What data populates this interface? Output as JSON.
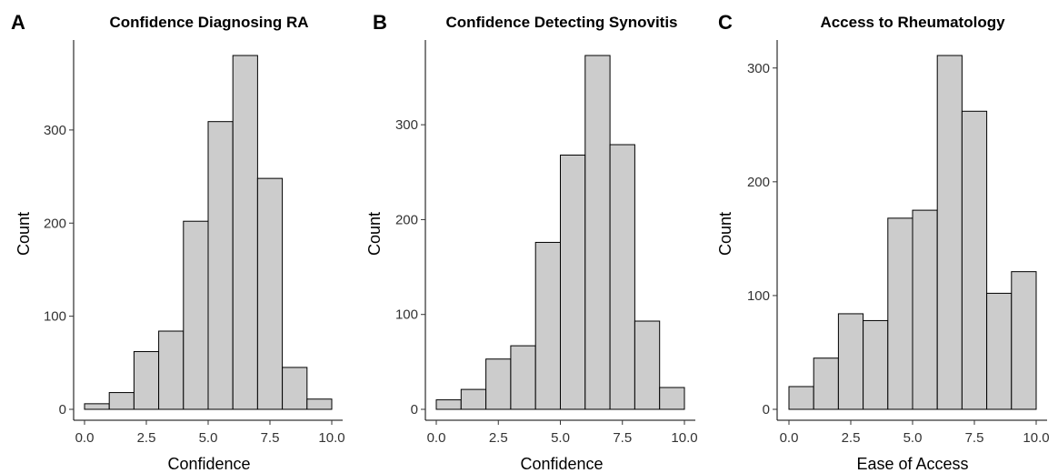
{
  "colors": {
    "bar_fill": "#cccccc",
    "bar_stroke": "#000000",
    "background": "#ffffff"
  },
  "chart_data": [
    {
      "type": "bar",
      "panel_label": "A",
      "title": "Confidence Diagnosing RA",
      "xlabel": "Confidence",
      "ylabel": "Count",
      "bin_edges": [
        0,
        1,
        2,
        3,
        4,
        5,
        6,
        7,
        8,
        9,
        10
      ],
      "values": [
        6,
        18,
        62,
        84,
        202,
        309,
        380,
        248,
        45,
        11
      ],
      "xlim": [
        0,
        10
      ],
      "ylim": [
        0,
        380
      ],
      "xticks": [
        0,
        2.5,
        5,
        7.5,
        10
      ],
      "xtick_labels": [
        "0.0",
        "2.5",
        "5.0",
        "7.5",
        "10.0"
      ],
      "yticks": [
        0,
        100,
        200,
        300
      ],
      "ytick_labels": [
        "0",
        "100",
        "200",
        "300"
      ],
      "grid": false
    },
    {
      "type": "bar",
      "panel_label": "B",
      "title": "Confidence Detecting Synovitis",
      "xlabel": "Confidence",
      "ylabel": "Count",
      "bin_edges": [
        0,
        1,
        2,
        3,
        4,
        5,
        6,
        7,
        8,
        9,
        10
      ],
      "values": [
        10,
        21,
        53,
        67,
        176,
        268,
        373,
        279,
        93,
        23
      ],
      "xlim": [
        0,
        10
      ],
      "ylim": [
        0,
        373
      ],
      "xticks": [
        0,
        2.5,
        5,
        7.5,
        10
      ],
      "xtick_labels": [
        "0.0",
        "2.5",
        "5.0",
        "7.5",
        "10.0"
      ],
      "yticks": [
        0,
        100,
        200,
        300
      ],
      "ytick_labels": [
        "0",
        "100",
        "200",
        "300"
      ],
      "grid": false
    },
    {
      "type": "bar",
      "panel_label": "C",
      "title": "Access to Rheumatology",
      "xlabel": "Ease of Access",
      "ylabel": "Count",
      "bin_edges": [
        0,
        1,
        2,
        3,
        4,
        5,
        6,
        7,
        8,
        9,
        10
      ],
      "values": [
        20,
        45,
        84,
        78,
        168,
        175,
        311,
        262,
        102,
        121
      ],
      "xlim": [
        0,
        10
      ],
      "ylim": [
        0,
        311
      ],
      "xticks": [
        0,
        2.5,
        5,
        7.5,
        10
      ],
      "xtick_labels": [
        "0.0",
        "2.5",
        "5.0",
        "7.5",
        "10.0"
      ],
      "yticks": [
        0,
        100,
        200,
        300
      ],
      "ytick_labels": [
        "0",
        "100",
        "200",
        "300"
      ],
      "grid": false
    }
  ]
}
